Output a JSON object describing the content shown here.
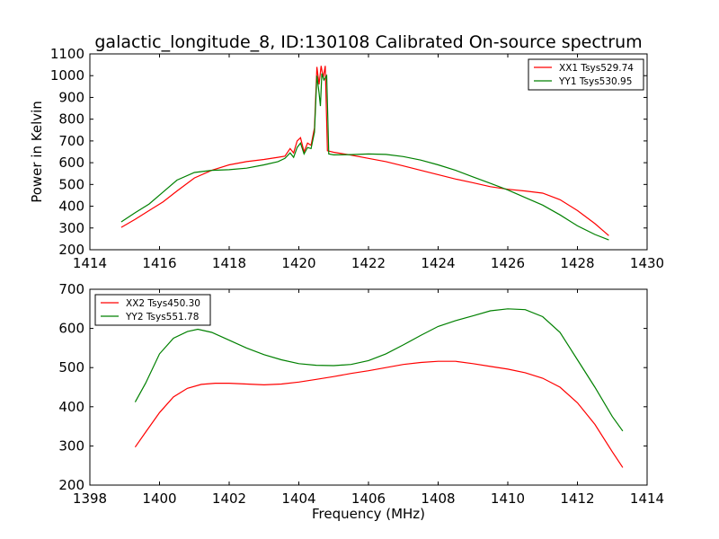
{
  "figure": {
    "title": "galactic_longitude_8, ID:130108 Calibrated On-source spectrum"
  },
  "chart_data": [
    {
      "type": "line",
      "title": "galactic_longitude_8, ID:130108 Calibrated On-source spectrum",
      "xlabel": "",
      "ylabel": "Power in Kelvin",
      "xlim": [
        1414,
        1430
      ],
      "ylim": [
        200,
        1100
      ],
      "xticks": [
        "1414",
        "1416",
        "1418",
        "1420",
        "1422",
        "1424",
        "1426",
        "1428",
        "1430"
      ],
      "yticks": [
        "200",
        "300",
        "400",
        "500",
        "600",
        "700",
        "800",
        "900",
        "1000",
        "1100"
      ],
      "legend_position": "top-right",
      "grid": false,
      "series": [
        {
          "name": "XX1 Tsys529.74",
          "color": "#ff0000",
          "points": [
            [
              1414.9,
              303
            ],
            [
              1415.3,
              340
            ],
            [
              1415.7,
              380
            ],
            [
              1416.1,
              420
            ],
            [
              1416.5,
              470
            ],
            [
              1417.0,
              530
            ],
            [
              1417.5,
              565
            ],
            [
              1418.0,
              590
            ],
            [
              1418.5,
              605
            ],
            [
              1419.0,
              615
            ],
            [
              1419.4,
              625
            ],
            [
              1419.6,
              630
            ],
            [
              1419.75,
              665
            ],
            [
              1419.85,
              645
            ],
            [
              1419.95,
              700
            ],
            [
              1420.05,
              715
            ],
            [
              1420.15,
              650
            ],
            [
              1420.25,
              690
            ],
            [
              1420.35,
              680
            ],
            [
              1420.45,
              760
            ],
            [
              1420.52,
              1040
            ],
            [
              1420.58,
              960
            ],
            [
              1420.64,
              1045
            ],
            [
              1420.7,
              990
            ],
            [
              1420.76,
              1045
            ],
            [
              1420.82,
              655
            ],
            [
              1421.0,
              648
            ],
            [
              1421.5,
              635
            ],
            [
              1422.0,
              620
            ],
            [
              1422.5,
              605
            ],
            [
              1423.0,
              585
            ],
            [
              1423.5,
              565
            ],
            [
              1424.0,
              545
            ],
            [
              1424.5,
              525
            ],
            [
              1425.0,
              508
            ],
            [
              1425.5,
              490
            ],
            [
              1426.0,
              478
            ],
            [
              1426.5,
              470
            ],
            [
              1427.0,
              460
            ],
            [
              1427.5,
              430
            ],
            [
              1428.0,
              380
            ],
            [
              1428.5,
              320
            ],
            [
              1428.9,
              265
            ]
          ]
        },
        {
          "name": "YY1 Tsys530.95",
          "color": "#008000",
          "points": [
            [
              1414.9,
              328
            ],
            [
              1415.3,
              370
            ],
            [
              1415.7,
              410
            ],
            [
              1416.1,
              465
            ],
            [
              1416.5,
              520
            ],
            [
              1417.0,
              555
            ],
            [
              1417.5,
              565
            ],
            [
              1418.0,
              568
            ],
            [
              1418.5,
              575
            ],
            [
              1419.0,
              590
            ],
            [
              1419.4,
              605
            ],
            [
              1419.6,
              620
            ],
            [
              1419.75,
              645
            ],
            [
              1419.85,
              625
            ],
            [
              1419.95,
              670
            ],
            [
              1420.05,
              690
            ],
            [
              1420.15,
              640
            ],
            [
              1420.25,
              670
            ],
            [
              1420.35,
              665
            ],
            [
              1420.45,
              740
            ],
            [
              1420.52,
              1000
            ],
            [
              1420.58,
              920
            ],
            [
              1420.62,
              860
            ],
            [
              1420.66,
              1010
            ],
            [
              1420.72,
              980
            ],
            [
              1420.8,
              1000
            ],
            [
              1420.86,
              640
            ],
            [
              1421.0,
              636
            ],
            [
              1421.5,
              637
            ],
            [
              1422.0,
              640
            ],
            [
              1422.5,
              638
            ],
            [
              1423.0,
              628
            ],
            [
              1423.5,
              612
            ],
            [
              1424.0,
              590
            ],
            [
              1424.5,
              565
            ],
            [
              1425.0,
              535
            ],
            [
              1425.5,
              505
            ],
            [
              1426.0,
              475
            ],
            [
              1426.5,
              440
            ],
            [
              1427.0,
              405
            ],
            [
              1427.5,
              360
            ],
            [
              1428.0,
              310
            ],
            [
              1428.5,
              270
            ],
            [
              1428.9,
              245
            ]
          ]
        }
      ]
    },
    {
      "type": "line",
      "title": "",
      "xlabel": "Frequency (MHz)",
      "ylabel": "",
      "xlim": [
        1398,
        1414
      ],
      "ylim": [
        200,
        700
      ],
      "xticks": [
        "1398",
        "1400",
        "1402",
        "1404",
        "1406",
        "1408",
        "1410",
        "1412",
        "1414"
      ],
      "yticks": [
        "200",
        "300",
        "400",
        "500",
        "600",
        "700"
      ],
      "legend_position": "top-left",
      "grid": false,
      "series": [
        {
          "name": "XX2 Tsys450.30",
          "color": "#ff0000",
          "points": [
            [
              1399.3,
              297
            ],
            [
              1399.6,
              335
            ],
            [
              1400.0,
              385
            ],
            [
              1400.4,
              425
            ],
            [
              1400.8,
              447
            ],
            [
              1401.2,
              457
            ],
            [
              1401.6,
              460
            ],
            [
              1402.0,
              460
            ],
            [
              1402.5,
              458
            ],
            [
              1403.0,
              456
            ],
            [
              1403.5,
              458
            ],
            [
              1404.0,
              463
            ],
            [
              1404.5,
              470
            ],
            [
              1405.0,
              477
            ],
            [
              1405.5,
              485
            ],
            [
              1406.0,
              492
            ],
            [
              1406.5,
              500
            ],
            [
              1407.0,
              508
            ],
            [
              1407.5,
              513
            ],
            [
              1408.0,
              516
            ],
            [
              1408.5,
              516
            ],
            [
              1409.0,
              510
            ],
            [
              1409.5,
              503
            ],
            [
              1410.0,
              496
            ],
            [
              1410.5,
              487
            ],
            [
              1411.0,
              473
            ],
            [
              1411.5,
              450
            ],
            [
              1412.0,
              410
            ],
            [
              1412.5,
              355
            ],
            [
              1413.0,
              285
            ],
            [
              1413.3,
              245
            ]
          ]
        },
        {
          "name": "YY2 Tsys551.78",
          "color": "#008000",
          "points": [
            [
              1399.3,
              412
            ],
            [
              1399.6,
              460
            ],
            [
              1400.0,
              535
            ],
            [
              1400.4,
              575
            ],
            [
              1400.8,
              592
            ],
            [
              1401.1,
              598
            ],
            [
              1401.5,
              590
            ],
            [
              1402.0,
              570
            ],
            [
              1402.5,
              550
            ],
            [
              1403.0,
              533
            ],
            [
              1403.5,
              520
            ],
            [
              1404.0,
              510
            ],
            [
              1404.5,
              506
            ],
            [
              1405.0,
              505
            ],
            [
              1405.5,
              508
            ],
            [
              1406.0,
              518
            ],
            [
              1406.5,
              535
            ],
            [
              1407.0,
              558
            ],
            [
              1407.5,
              582
            ],
            [
              1408.0,
              605
            ],
            [
              1408.5,
              620
            ],
            [
              1409.0,
              632
            ],
            [
              1409.5,
              645
            ],
            [
              1410.0,
              650
            ],
            [
              1410.5,
              648
            ],
            [
              1411.0,
              630
            ],
            [
              1411.5,
              590
            ],
            [
              1412.0,
              520
            ],
            [
              1412.5,
              450
            ],
            [
              1413.0,
              375
            ],
            [
              1413.3,
              338
            ]
          ]
        }
      ]
    }
  ]
}
